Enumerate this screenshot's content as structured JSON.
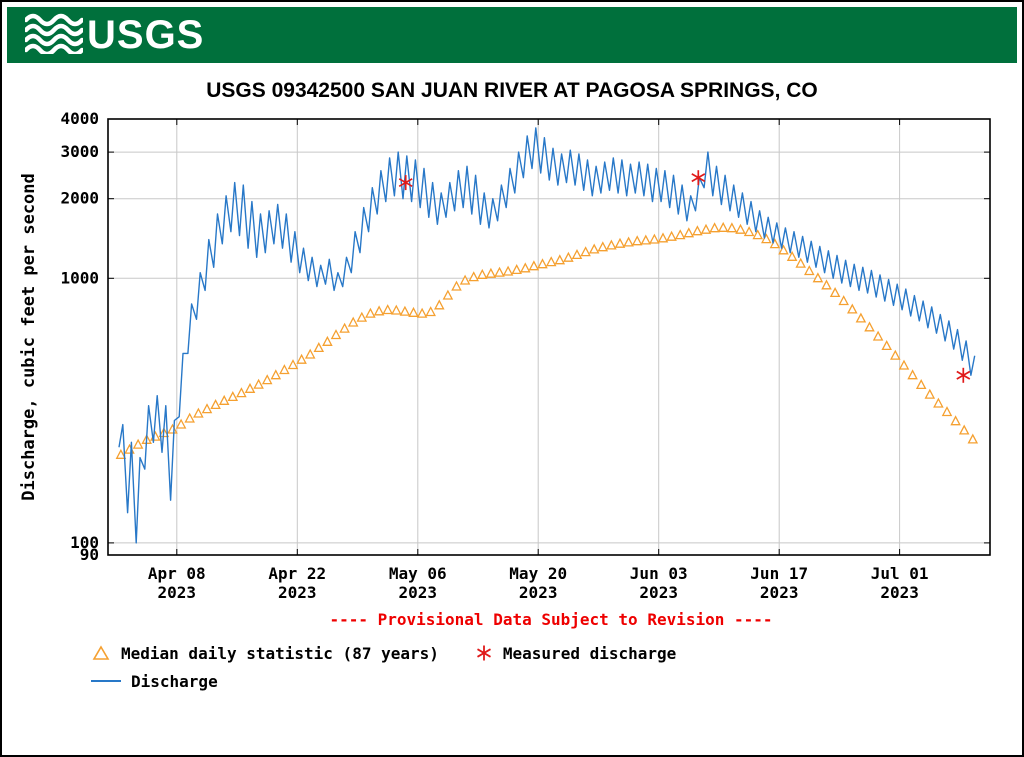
{
  "header": {
    "logo_text": "USGS",
    "background_color": "#00703c"
  },
  "chart": {
    "title": "USGS 09342500 SAN JUAN RIVER AT PAGOSA SPRINGS, CO",
    "provisional_note": "---- Provisional Data Subject to Revision ----"
  },
  "legend": {
    "median_label": "Median daily statistic (87 years)",
    "measured_label": "Measured discharge",
    "discharge_label": "Discharge"
  },
  "chart_data": {
    "type": "line",
    "title": "USGS 09342500 SAN JUAN RIVER AT PAGOSA SPRINGS, CO",
    "xlabel": "",
    "ylabel": "Discharge, cubic feet per second",
    "y_scale": "log",
    "ylim": [
      90,
      4000
    ],
    "grid": true,
    "legend_position": "bottom-left",
    "x_start_date": "2023-04-01",
    "x_end_date": "2023-07-09",
    "x_domain_days": [
      -1,
      101.5
    ],
    "y_ticks": [
      {
        "label": "4000",
        "value": 4000
      },
      {
        "label": "3000",
        "value": 3000
      },
      {
        "label": "2000",
        "value": 2000
      },
      {
        "label": "1000",
        "value": 1000
      },
      {
        "label": "100",
        "value": 100
      },
      {
        "label": "90",
        "value": 90
      }
    ],
    "x_ticks": [
      {
        "label": "Apr 08",
        "year": "2023",
        "day": 7
      },
      {
        "label": "Apr 22",
        "year": "2023",
        "day": 21
      },
      {
        "label": "May 06",
        "year": "2023",
        "day": 35
      },
      {
        "label": "May 20",
        "year": "2023",
        "day": 49
      },
      {
        "label": "Jun 03",
        "year": "2023",
        "day": 63
      },
      {
        "label": "Jun 17",
        "year": "2023",
        "day": 77
      },
      {
        "label": "Jul 01",
        "year": "2023",
        "day": 91
      }
    ],
    "colors": {
      "discharge": "#2878c8",
      "median": "#f5a030",
      "measured": "#e01a1a",
      "provisional": "#ee0000",
      "grid": "#c8c8c8"
    },
    "series": [
      {
        "name": "Discharge",
        "style": "line",
        "units": "cubic feet per second",
        "sampling": "daily min and max (diurnal cycle), Apr 1 - Jul 9 2023",
        "daily_min": [
          230,
          130,
          100,
          190,
          240,
          220,
          145,
          300,
          520,
          700,
          900,
          1100,
          1350,
          1500,
          1450,
          1300,
          1200,
          1250,
          1350,
          1300,
          1150,
          1050,
          980,
          930,
          950,
          900,
          930,
          1050,
          1250,
          1500,
          1750,
          1950,
          2050,
          2000,
          1950,
          1850,
          1700,
          1600,
          1700,
          1800,
          1850,
          1750,
          1600,
          1550,
          1650,
          1850,
          2100,
          2400,
          2600,
          2500,
          2350,
          2250,
          2300,
          2250,
          2150,
          2050,
          2100,
          2150,
          2100,
          2050,
          2100,
          2050,
          1950,
          1950,
          1850,
          1750,
          1650,
          1800,
          2200,
          2050,
          1900,
          1800,
          1700,
          1600,
          1500,
          1420,
          1360,
          1300,
          1250,
          1200,
          1150,
          1100,
          1050,
          1000,
          960,
          930,
          900,
          880,
          850,
          820,
          790,
          760,
          720,
          690,
          650,
          620,
          580,
          540,
          490,
          430
        ],
        "daily_max": [
          280,
          240,
          210,
          330,
          360,
          330,
          290,
          520,
          800,
          1050,
          1400,
          1750,
          2050,
          2300,
          2250,
          1950,
          1750,
          1800,
          1900,
          1750,
          1500,
          1300,
          1200,
          1120,
          1180,
          1050,
          1200,
          1500,
          1850,
          2200,
          2550,
          2850,
          3000,
          2900,
          2800,
          2600,
          2300,
          2100,
          2300,
          2550,
          2650,
          2450,
          2100,
          2000,
          2250,
          2600,
          3000,
          3450,
          3700,
          3400,
          3100,
          2950,
          3050,
          2950,
          2800,
          2650,
          2750,
          2850,
          2800,
          2700,
          2750,
          2700,
          2600,
          2550,
          2450,
          2250,
          2050,
          2400,
          3000,
          2650,
          2450,
          2250,
          2100,
          1950,
          1800,
          1700,
          1620,
          1550,
          1500,
          1440,
          1380,
          1320,
          1270,
          1220,
          1170,
          1130,
          1100,
          1070,
          1030,
          990,
          950,
          910,
          860,
          820,
          780,
          730,
          690,
          640,
          580,
          510
        ]
      },
      {
        "name": "Median daily statistic (87 years)",
        "style": "triangles",
        "units": "cubic feet per second",
        "sampling": "daily values, Apr 1 - Jul 9",
        "daily_values": [
          215,
          225,
          235,
          245,
          252,
          260,
          268,
          280,
          295,
          308,
          320,
          332,
          344,
          356,
          368,
          382,
          396,
          412,
          430,
          450,
          470,
          492,
          515,
          545,
          575,
          610,
          645,
          680,
          710,
          735,
          750,
          758,
          755,
          748,
          740,
          735,
          745,
          790,
          860,
          930,
          980,
          1010,
          1030,
          1040,
          1050,
          1060,
          1075,
          1090,
          1110,
          1130,
          1150,
          1170,
          1195,
          1225,
          1255,
          1285,
          1310,
          1330,
          1350,
          1365,
          1380,
          1390,
          1400,
          1415,
          1435,
          1455,
          1480,
          1505,
          1525,
          1545,
          1550,
          1545,
          1525,
          1495,
          1455,
          1405,
          1345,
          1275,
          1205,
          1135,
          1065,
          1000,
          940,
          880,
          820,
          762,
          705,
          652,
          602,
          555,
          510,
          468,
          430,
          395,
          363,
          336,
          312,
          288,
          266,
          246
        ]
      },
      {
        "name": "Measured discharge",
        "style": "asterisks",
        "units": "cubic feet per second",
        "points": [
          {
            "date": "2023-05-04",
            "day": 33.6,
            "value": 2300
          },
          {
            "date": "2023-06-07",
            "day": 67.6,
            "value": 2400
          },
          {
            "date": "2023-07-08",
            "day": 98.4,
            "value": 430
          }
        ]
      }
    ]
  }
}
